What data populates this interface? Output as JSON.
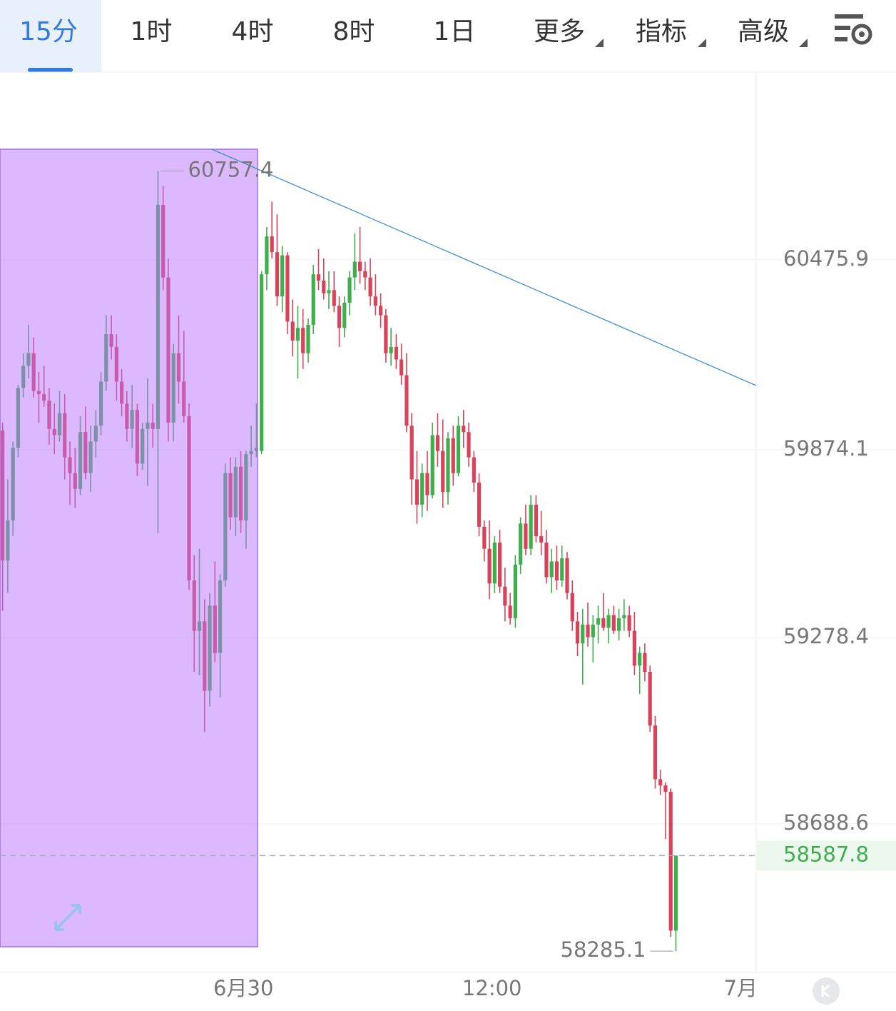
{
  "tabs": [
    "15分",
    "1时",
    "4时",
    "8时",
    "1日",
    "更多",
    "指标",
    "高级"
  ],
  "chart_data": {
    "type": "candlestick",
    "up_color": "#3fae4c",
    "down_color": "#d9435a",
    "xlim": [
      -0.5,
      145.5
    ],
    "xticks": [
      {
        "value": 46.5,
        "label": "6月30"
      },
      {
        "value": 94.5,
        "label": "12:00"
      },
      {
        "value": 142.5,
        "label": "7月"
      }
    ],
    "ylim": [
      58222,
      61073
    ],
    "yticks": [
      60475.9,
      59874.1,
      59278.4,
      58688.6
    ],
    "grid": true,
    "current_price": 58587.8,
    "max_annotation": 60757.4,
    "min_annotation": 58285.1,
    "candles": [
      [
        59935,
        59960,
        59363,
        59523
      ],
      [
        59523,
        59780,
        59420,
        59650
      ],
      [
        59650,
        59900,
        59600,
        59880
      ],
      [
        59880,
        60080,
        59850,
        60070
      ],
      [
        60070,
        60180,
        60040,
        60140
      ],
      [
        60140,
        60270,
        60100,
        60180
      ],
      [
        60180,
        60230,
        60040,
        60060
      ],
      [
        60060,
        60120,
        59960,
        60050
      ],
      [
        60050,
        60140,
        60010,
        60030
      ],
      [
        60030,
        60070,
        59890,
        59940
      ],
      [
        59940,
        60020,
        59860,
        59920
      ],
      [
        59920,
        60060,
        59900,
        59990
      ],
      [
        59990,
        60050,
        59780,
        59850
      ],
      [
        59850,
        59900,
        59700,
        59800
      ],
      [
        59800,
        59880,
        59690,
        59750
      ],
      [
        59750,
        59980,
        59730,
        59930
      ],
      [
        59930,
        60010,
        59780,
        59800
      ],
      [
        59800,
        59950,
        59740,
        59900
      ],
      [
        59900,
        60000,
        59850,
        59950
      ],
      [
        59950,
        60120,
        59920,
        60090
      ],
      [
        60090,
        60300,
        60060,
        60240
      ],
      [
        60240,
        60300,
        60160,
        60200
      ],
      [
        60200,
        60240,
        60030,
        60090
      ],
      [
        60090,
        60130,
        59980,
        60020
      ],
      [
        60020,
        60060,
        59900,
        59940
      ],
      [
        59940,
        60080,
        59880,
        60000
      ],
      [
        60000,
        60020,
        59790,
        59830
      ],
      [
        59830,
        59960,
        59810,
        59940
      ],
      [
        59940,
        60100,
        59760,
        59960
      ],
      [
        59960,
        60020,
        59880,
        59940
      ],
      [
        59940,
        60757.4,
        59610,
        60650
      ],
      [
        60650,
        60710,
        60380,
        60420
      ],
      [
        60420,
        60480,
        59900,
        59960
      ],
      [
        59960,
        60210,
        59900,
        60180
      ],
      [
        60180,
        60300,
        60020,
        60090
      ],
      [
        60090,
        60250,
        59960,
        59980
      ],
      [
        59980,
        60020,
        59430,
        59460
      ],
      [
        59460,
        59540,
        59170,
        59300
      ],
      [
        59300,
        59560,
        59160,
        59330
      ],
      [
        59330,
        59400,
        58980,
        59110
      ],
      [
        59110,
        59420,
        59060,
        59380
      ],
      [
        59380,
        59520,
        59200,
        59230
      ],
      [
        59230,
        59480,
        59090,
        59460
      ],
      [
        59460,
        59830,
        59440,
        59800
      ],
      [
        59800,
        59850,
        59620,
        59660
      ],
      [
        59660,
        59850,
        59600,
        59820
      ],
      [
        59820,
        59870,
        59610,
        59650
      ],
      [
        59650,
        59870,
        59560,
        59860
      ],
      [
        59860,
        59950,
        59820,
        59870
      ],
      [
        59870,
        60020,
        59850,
        59880
      ],
      [
        59870,
        60440,
        59860,
        60430
      ],
      [
        60430,
        60580,
        60380,
        60550
      ],
      [
        60550,
        60660,
        60480,
        60500
      ],
      [
        60500,
        60620,
        60330,
        60360
      ],
      [
        60360,
        60520,
        60310,
        60490
      ],
      [
        60490,
        60500,
        60240,
        60280
      ],
      [
        60280,
        60350,
        60170,
        60220
      ],
      [
        60220,
        60330,
        60100,
        60260
      ],
      [
        60260,
        60320,
        60130,
        60180
      ],
      [
        60180,
        60290,
        60150,
        60270
      ],
      [
        60270,
        60460,
        60240,
        60430
      ],
      [
        60430,
        60510,
        60380,
        60410
      ],
      [
        60410,
        60480,
        60350,
        60370
      ],
      [
        60370,
        60440,
        60320,
        60380
      ],
      [
        60380,
        60440,
        60310,
        60330
      ],
      [
        60330,
        60360,
        60200,
        60260
      ],
      [
        60260,
        60360,
        60230,
        60340
      ],
      [
        60340,
        60440,
        60300,
        60420
      ],
      [
        60420,
        60560,
        60380,
        60470
      ],
      [
        60470,
        60580,
        60400,
        60440
      ],
      [
        60440,
        60470,
        60380,
        60420
      ],
      [
        60420,
        60480,
        60330,
        60360
      ],
      [
        60360,
        60430,
        60300,
        60330
      ],
      [
        60330,
        60370,
        60260,
        60300
      ],
      [
        60300,
        60320,
        60150,
        60180
      ],
      [
        60180,
        60260,
        60140,
        60200
      ],
      [
        60200,
        60240,
        60130,
        60160
      ],
      [
        60160,
        60210,
        60080,
        60110
      ],
      [
        60110,
        60180,
        59930,
        59950
      ],
      [
        59950,
        59990,
        59700,
        59780
      ],
      [
        59780,
        59870,
        59640,
        59700
      ],
      [
        59700,
        59830,
        59660,
        59800
      ],
      [
        59800,
        59870,
        59680,
        59730
      ],
      [
        59730,
        59960,
        59720,
        59920
      ],
      [
        59920,
        59990,
        59820,
        59870
      ],
      [
        59870,
        59970,
        59690,
        59740
      ],
      [
        59740,
        59930,
        59700,
        59910
      ],
      [
        59910,
        59950,
        59760,
        59800
      ],
      [
        59800,
        59980,
        59790,
        59950
      ],
      [
        59950,
        60000,
        59880,
        59930
      ],
      [
        59930,
        59960,
        59820,
        59850
      ],
      [
        59850,
        59870,
        59740,
        59770
      ],
      [
        59770,
        59800,
        59600,
        59630
      ],
      [
        59630,
        59650,
        59520,
        59560
      ],
      [
        59560,
        59650,
        59400,
        59450
      ],
      [
        59450,
        59600,
        59420,
        59580
      ],
      [
        59580,
        59620,
        59420,
        59440
      ],
      [
        59440,
        59500,
        59330,
        59380
      ],
      [
        59380,
        59420,
        59320,
        59340
      ],
      [
        59340,
        59540,
        59310,
        59510
      ],
      [
        59510,
        59660,
        59480,
        59640
      ],
      [
        59640,
        59700,
        59540,
        59560
      ],
      [
        59560,
        59730,
        59540,
        59700
      ],
      [
        59700,
        59730,
        59580,
        59600
      ],
      [
        59600,
        59680,
        59540,
        59580
      ],
      [
        59580,
        59620,
        59450,
        59470
      ],
      [
        59470,
        59560,
        59420,
        59520
      ],
      [
        59520,
        59570,
        59430,
        59460
      ],
      [
        59460,
        59570,
        59440,
        59530
      ],
      [
        59530,
        59550,
        59400,
        59420
      ],
      [
        59420,
        59460,
        59300,
        59330
      ],
      [
        59330,
        59360,
        59220,
        59260
      ],
      [
        59260,
        59370,
        59130,
        59320
      ],
      [
        59320,
        59390,
        59250,
        59280
      ],
      [
        59280,
        59350,
        59200,
        59320
      ],
      [
        59320,
        59380,
        59260,
        59340
      ],
      [
        59340,
        59420,
        59300,
        59310
      ],
      [
        59310,
        59370,
        59260,
        59350
      ],
      [
        59350,
        59380,
        59290,
        59300
      ],
      [
        59300,
        59370,
        59270,
        59340
      ],
      [
        59340,
        59400,
        59300,
        59350
      ],
      [
        59350,
        59380,
        59280,
        59300
      ],
      [
        59300,
        59360,
        59160,
        59190
      ],
      [
        59190,
        59250,
        59100,
        59230
      ],
      [
        59230,
        59260,
        59140,
        59170
      ],
      [
        59170,
        59190,
        58980,
        59000
      ],
      [
        59000,
        59030,
        58800,
        58830
      ],
      [
        58830,
        58860,
        58780,
        58810
      ],
      [
        58810,
        58820,
        58640,
        58790
      ],
      [
        58790,
        58800,
        58330,
        58350
      ],
      [
        58350,
        58587.8,
        58285.1,
        58587.8
      ]
    ]
  }
}
